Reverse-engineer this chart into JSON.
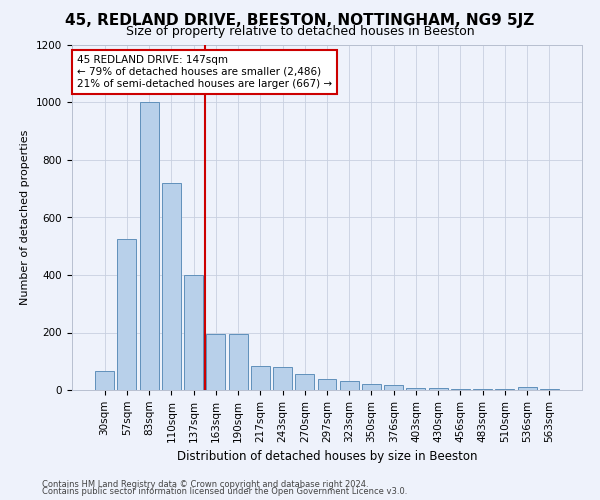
{
  "title1": "45, REDLAND DRIVE, BEESTON, NOTTINGHAM, NG9 5JZ",
  "title2": "Size of property relative to detached houses in Beeston",
  "xlabel": "Distribution of detached houses by size in Beeston",
  "ylabel": "Number of detached properties",
  "categories": [
    "30sqm",
    "57sqm",
    "83sqm",
    "110sqm",
    "137sqm",
    "163sqm",
    "190sqm",
    "217sqm",
    "243sqm",
    "270sqm",
    "297sqm",
    "323sqm",
    "350sqm",
    "376sqm",
    "403sqm",
    "430sqm",
    "456sqm",
    "483sqm",
    "510sqm",
    "536sqm",
    "563sqm"
  ],
  "values": [
    65,
    525,
    1000,
    720,
    400,
    195,
    195,
    85,
    80,
    55,
    38,
    30,
    20,
    17,
    8,
    6,
    5,
    5,
    4,
    10,
    4
  ],
  "bar_color": "#b8d0ea",
  "bar_edge_color": "#6090bb",
  "vline_x": 4.5,
  "vline_color": "#cc0000",
  "annotation_text": "45 REDLAND DRIVE: 147sqm\n← 79% of detached houses are smaller (2,486)\n21% of semi-detached houses are larger (667) →",
  "annotation_box_color": "#ffffff",
  "annotation_box_edge_color": "#cc0000",
  "ylim": [
    0,
    1200
  ],
  "yticks": [
    0,
    200,
    400,
    600,
    800,
    1000,
    1200
  ],
  "footer1": "Contains HM Land Registry data © Crown copyright and database right 2024.",
  "footer2": "Contains public sector information licensed under the Open Government Licence v3.0.",
  "bg_color": "#eef2fb",
  "plot_bg_color": "#eef2fb",
  "title1_fontsize": 11,
  "title2_fontsize": 9,
  "xlabel_fontsize": 8.5,
  "ylabel_fontsize": 8,
  "tick_fontsize": 7.5,
  "footer_fontsize": 6,
  "annot_fontsize": 7.5
}
